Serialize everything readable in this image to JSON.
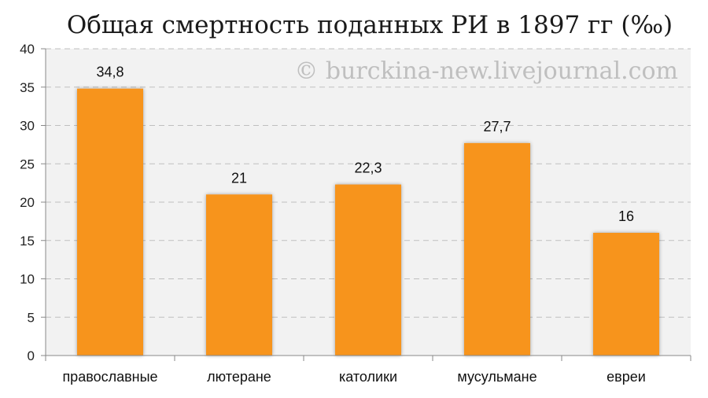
{
  "chart_data": {
    "type": "bar",
    "title": "Общая смертность поданных РИ в 1897 гг (‰)",
    "watermark": "© burckina-new.livejournal.com",
    "categories": [
      "православные",
      "лютеране",
      "католики",
      "мусульмане",
      "евреи"
    ],
    "values": [
      34.8,
      21,
      22.3,
      27.7,
      16
    ],
    "data_labels": [
      "34,8",
      "21",
      "22,3",
      "27,7",
      "16"
    ],
    "ylim": [
      0,
      40
    ],
    "yticks": [
      "0",
      "5",
      "10",
      "15",
      "20",
      "25",
      "30",
      "35",
      "40"
    ],
    "grid": true,
    "bar_color": "#f7941e",
    "plot_background": "#f2f2f2",
    "grid_color": "#bfbfbf"
  }
}
